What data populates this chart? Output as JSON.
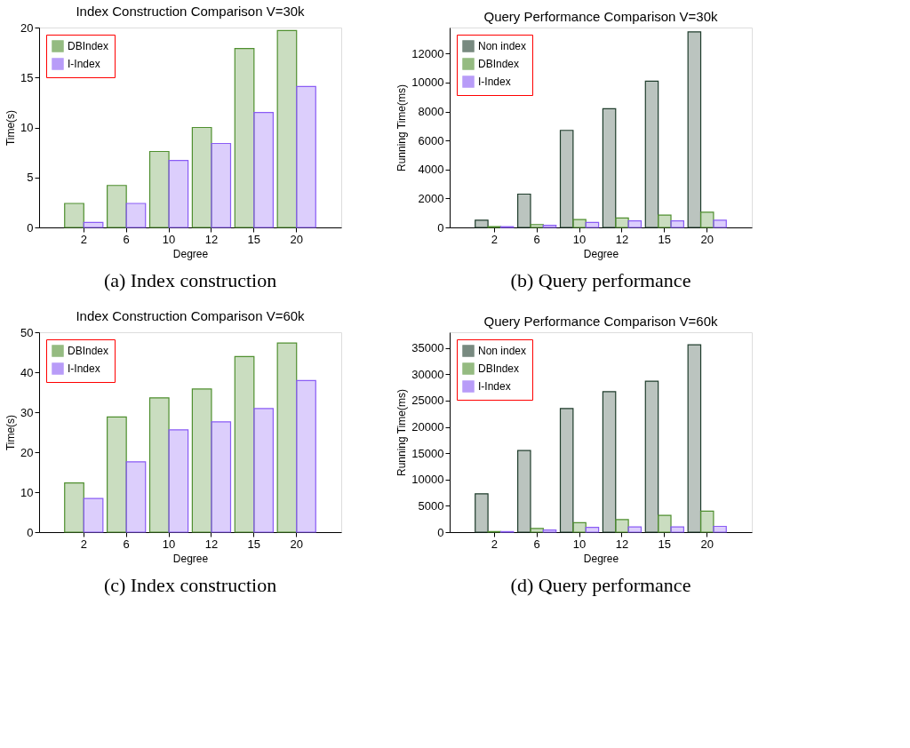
{
  "chart_data": [
    {
      "type": "bar",
      "title": "Index Construction Comparison V=30k",
      "xlabel": "Degree",
      "ylabel": "Time(s)",
      "categories": [
        "2",
        "6",
        "10",
        "12",
        "15",
        "20"
      ],
      "ylim": [
        0,
        20
      ],
      "yticks": [
        0,
        5,
        10,
        15,
        20
      ],
      "grid": false,
      "legend": "top left",
      "annotations": [
        "(a) Index construction"
      ],
      "series": [
        {
          "name": "DBIndex",
          "color": "#4f8f2f",
          "values": [
            2.4,
            4.2,
            7.6,
            10.0,
            17.9,
            19.7
          ]
        },
        {
          "name": "I-Index",
          "color": "#8a5cf5",
          "values": [
            0.5,
            2.4,
            6.7,
            8.4,
            11.5,
            14.1
          ]
        }
      ]
    },
    {
      "type": "bar",
      "title": "Query Performance Comparison V=30k",
      "xlabel": "Degree",
      "ylabel": "Running Time(ms)",
      "categories": [
        "2",
        "6",
        "10",
        "12",
        "15",
        "20"
      ],
      "ylim": [
        0,
        13800
      ],
      "yticks": [
        0,
        2000,
        4000,
        6000,
        8000,
        10000,
        12000
      ],
      "grid": false,
      "legend": "top left",
      "annotations": [
        "(b) Query performance"
      ],
      "series": [
        {
          "name": "Non index",
          "color": "#1f3d2c",
          "values": [
            500,
            2300,
            6700,
            8200,
            10100,
            13500
          ]
        },
        {
          "name": "DBIndex",
          "color": "#4f8f2f",
          "values": [
            50,
            200,
            550,
            650,
            850,
            1050
          ]
        },
        {
          "name": "I-Index",
          "color": "#8a5cf5",
          "values": [
            50,
            150,
            350,
            450,
            450,
            500
          ]
        }
      ]
    },
    {
      "type": "bar",
      "title": "Index Construction Comparison V=60k",
      "xlabel": "Degree",
      "ylabel": "Time(s)",
      "categories": [
        "2",
        "6",
        "10",
        "12",
        "15",
        "20"
      ],
      "ylim": [
        0,
        50
      ],
      "yticks": [
        0,
        10,
        20,
        30,
        40,
        50
      ],
      "grid": false,
      "legend": "top left",
      "annotations": [
        "(c) Index construction"
      ],
      "series": [
        {
          "name": "DBIndex",
          "color": "#4f8f2f",
          "values": [
            12.3,
            28.8,
            33.6,
            35.8,
            43.9,
            47.3
          ]
        },
        {
          "name": "I-Index",
          "color": "#8a5cf5",
          "values": [
            8.4,
            17.6,
            25.6,
            27.6,
            30.9,
            37.9
          ]
        }
      ]
    },
    {
      "type": "bar",
      "title": "Query Performance Comparison V=60k",
      "xlabel": "Degree",
      "ylabel": "Running Time(ms)",
      "categories": [
        "2",
        "6",
        "10",
        "12",
        "15",
        "20"
      ],
      "ylim": [
        0,
        38000
      ],
      "yticks": [
        0,
        5000,
        10000,
        15000,
        20000,
        25000,
        30000,
        35000
      ],
      "grid": false,
      "legend": "top left",
      "annotations": [
        "(d) Query performance"
      ],
      "series": [
        {
          "name": "Non index",
          "color": "#1f3d2c",
          "values": [
            7300,
            15500,
            23500,
            26700,
            28700,
            35600
          ]
        },
        {
          "name": "DBIndex",
          "color": "#4f8f2f",
          "values": [
            100,
            700,
            1800,
            2400,
            3200,
            4000
          ]
        },
        {
          "name": "I-Index",
          "color": "#8a5cf5",
          "values": [
            100,
            400,
            900,
            1000,
            1000,
            1100
          ]
        }
      ]
    }
  ]
}
